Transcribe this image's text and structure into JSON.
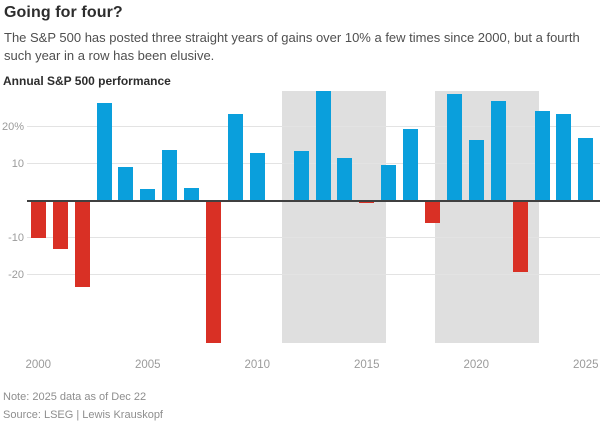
{
  "header": {
    "title": "Going for four?",
    "subtitle": "The S&P 500 has posted three straight years of gains over 10% a few times since 2000, but a fourth such year in a row has been elusive."
  },
  "chart_data": {
    "type": "bar",
    "panel_label": "Annual S&P 500 performance",
    "x": [
      2000,
      2001,
      2002,
      2003,
      2004,
      2005,
      2006,
      2007,
      2008,
      2009,
      2010,
      2011,
      2012,
      2013,
      2014,
      2015,
      2016,
      2017,
      2018,
      2019,
      2020,
      2021,
      2022,
      2023,
      2024,
      2025
    ],
    "values": [
      -10.1,
      -13.0,
      -23.4,
      26.4,
      9.0,
      3.0,
      13.6,
      3.5,
      -38.5,
      23.5,
      12.8,
      0.0,
      13.4,
      29.6,
      11.4,
      -0.7,
      9.5,
      19.4,
      -6.2,
      28.9,
      16.3,
      26.9,
      -19.4,
      24.2,
      23.3,
      17.0
    ],
    "unit": "percent",
    "ylim": [
      -38.5,
      29.6
    ],
    "grid": true,
    "y_ticks": [
      {
        "value": 20,
        "label": "20%"
      },
      {
        "value": 10,
        "label": "10"
      },
      {
        "value": -10,
        "label": "-10"
      },
      {
        "value": -20,
        "label": "-20"
      }
    ],
    "x_ticks": [
      {
        "year": 2000,
        "label": "2000"
      },
      {
        "year": 2005,
        "label": "2005"
      },
      {
        "year": 2010,
        "label": "2010"
      },
      {
        "year": 2015,
        "label": "2015"
      },
      {
        "year": 2020,
        "label": "2020"
      },
      {
        "year": 2025,
        "label": "2025"
      }
    ],
    "highlight_bands": [
      {
        "from": 2012,
        "to": 2015
      },
      {
        "from": 2019,
        "to": 2022
      }
    ],
    "colors": {
      "positive": "#0a9fdc",
      "negative": "#d93025",
      "band": "#dfdfdf",
      "grid": "#e3e3e3",
      "zero_line": "#404040",
      "axis_text": "#9b9b9b"
    }
  },
  "footer": {
    "note": "Note: 2025 data as of Dec 22",
    "source": "Source: LSEG | Lewis Krauskopf"
  }
}
